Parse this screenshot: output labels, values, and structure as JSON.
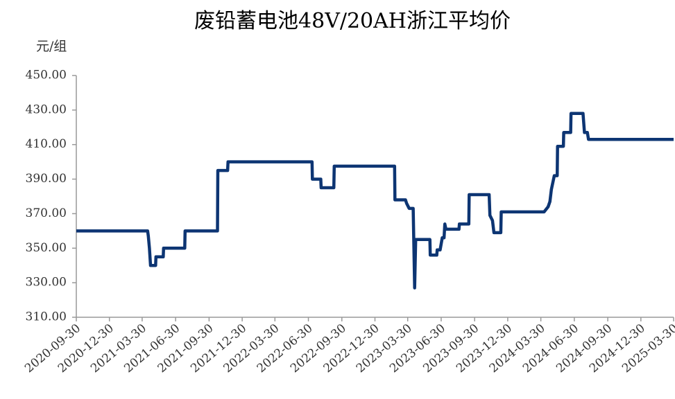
{
  "chart_data": {
    "type": "line",
    "title": "废铅蓄电池48V/20AH浙江平均价",
    "y_label": "元/组",
    "x": [
      "2020-09-30",
      "2021-04-14",
      "2021-04-16",
      "2021-04-19",
      "2021-04-22",
      "2021-05-06",
      "2021-05-07",
      "2021-05-27",
      "2021-05-28",
      "2021-07-25",
      "2021-07-26",
      "2021-10-23",
      "2021-10-24",
      "2021-11-20",
      "2021-11-21",
      "2022-07-10",
      "2022-07-11",
      "2022-08-03",
      "2022-08-04",
      "2022-09-08",
      "2022-09-09",
      "2023-02-22",
      "2023-02-23",
      "2023-03-24",
      "2023-03-27",
      "2023-04-03",
      "2023-04-14",
      "2023-04-18",
      "2023-04-21",
      "2023-05-30",
      "2023-05-31",
      "2023-06-18",
      "2023-06-19",
      "2023-06-27",
      "2023-07-03",
      "2023-07-08",
      "2023-07-10",
      "2023-07-13",
      "2023-08-18",
      "2023-08-19",
      "2023-09-14",
      "2023-09-15",
      "2023-11-09",
      "2023-11-11",
      "2023-11-18",
      "2023-11-22",
      "2023-12-11",
      "2023-12-12",
      "2024-04-07",
      "2024-04-08",
      "2024-04-19",
      "2024-04-24",
      "2024-04-28",
      "2024-05-06",
      "2024-05-14",
      "2024-05-15",
      "2024-05-31",
      "2024-06-01",
      "2024-06-20",
      "2024-06-21",
      "2024-07-24",
      "2024-07-28",
      "2024-08-05",
      "2024-08-08",
      "2025-03-30"
    ],
    "values": [
      360,
      360,
      357,
      350,
      340,
      340,
      345,
      345,
      350,
      350,
      360,
      360,
      395,
      395,
      400,
      400,
      390,
      390,
      385,
      385,
      397.5,
      397.5,
      378,
      378,
      376,
      373,
      373,
      327,
      355,
      355,
      346,
      346,
      349,
      349,
      356,
      356,
      364,
      361,
      361,
      364,
      364,
      381,
      381,
      369,
      366,
      359,
      359,
      371,
      371,
      371,
      374,
      377,
      384,
      392,
      392,
      409,
      409,
      417,
      417,
      428,
      428,
      417,
      417,
      413,
      413
    ],
    "color": "#0d3573",
    "xlim": [
      "2020-09-30",
      "2025-03-30"
    ],
    "xticks": [
      "2020-09-30",
      "2020-12-30",
      "2021-03-30",
      "2021-06-30",
      "2021-09-30",
      "2021-12-30",
      "2022-03-30",
      "2022-06-30",
      "2022-09-30",
      "2022-12-30",
      "2023-03-30",
      "2023-06-30",
      "2023-09-30",
      "2023-12-30",
      "2024-03-30",
      "2024-06-30",
      "2024-09-30",
      "2024-12-30",
      "2025-03-30"
    ],
    "ylim": [
      310,
      450
    ],
    "yticks": [
      {
        "value": 310,
        "label": "310.00"
      },
      {
        "value": 330,
        "label": "330.00"
      },
      {
        "value": 350,
        "label": "350.00"
      },
      {
        "value": 370,
        "label": "370.00"
      },
      {
        "value": 390,
        "label": "390.00"
      },
      {
        "value": 410,
        "label": "410.00"
      },
      {
        "value": 430,
        "label": "430.00"
      },
      {
        "value": 450,
        "label": "450.00"
      }
    ]
  }
}
